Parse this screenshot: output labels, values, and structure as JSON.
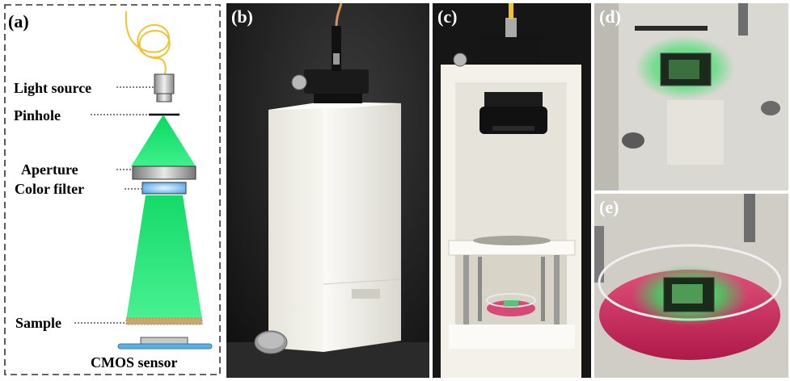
{
  "panels": {
    "a": {
      "label": "(a)",
      "components": {
        "light_source": "Light source",
        "pinhole": "Pinhole",
        "aperture": "Aperture",
        "color_filter": "Color filter",
        "sample": "Sample",
        "cmos_sensor": "CMOS sensor"
      }
    },
    "b": {
      "label": "(b)"
    },
    "c": {
      "label": "(c)"
    },
    "d": {
      "label": "(d)"
    },
    "e": {
      "label": "(e)"
    }
  },
  "colors": {
    "fiber": "#f2c230",
    "beam": "#14e06a",
    "filter": "#8ec8f0",
    "sample": "#c9a86b",
    "sensor_base": "#5ab0e0",
    "enclosure": "#f1efe8",
    "photo_dark": "#1a1a1a",
    "medium": "#d8306a"
  }
}
